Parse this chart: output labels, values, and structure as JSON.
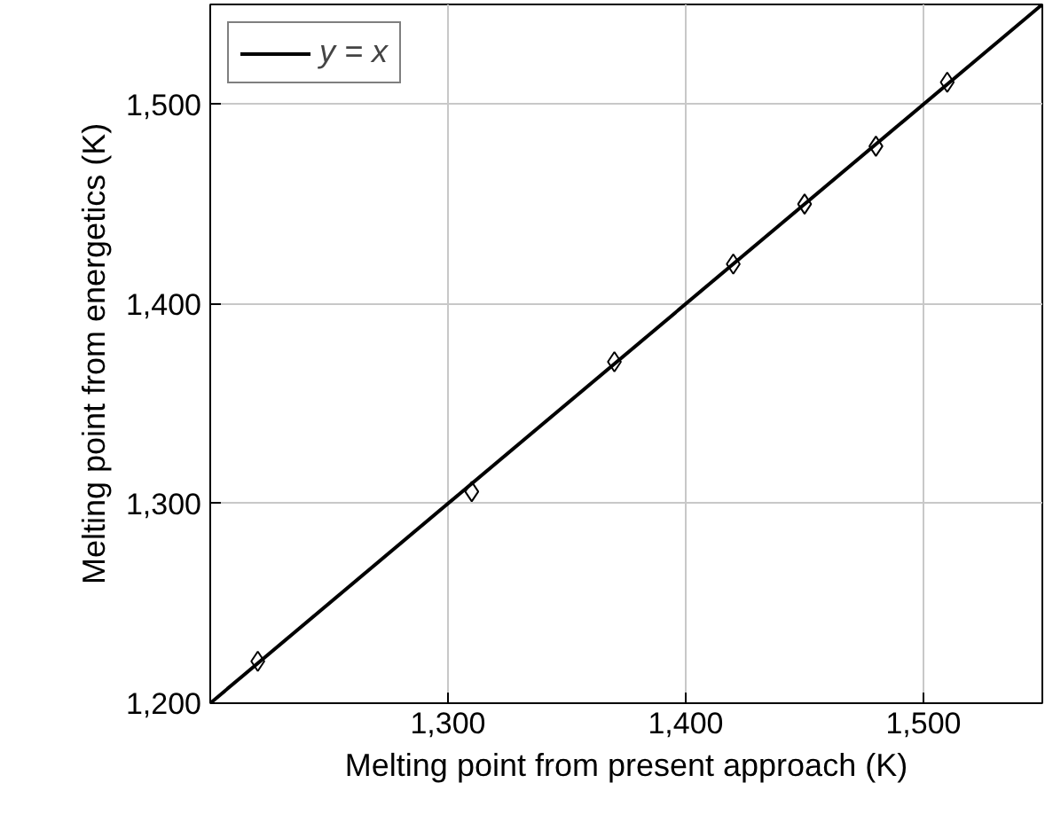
{
  "chart_data": {
    "type": "scatter",
    "xlabel": "Melting point from present approach (K)",
    "ylabel": "Melting point from energetics (K)",
    "x": [
      1220,
      1310,
      1370,
      1420,
      1450,
      1480,
      1510
    ],
    "series": [
      {
        "color": "#000000",
        "marker": "diamond",
        "values": [
          1221,
          1306,
          1371,
          1420,
          1450,
          1479,
          1511
        ]
      },
      {
        "type": "line",
        "name": "y = x",
        "color": "#000000",
        "x": [
          1200,
          1550
        ],
        "values": [
          1200,
          1550
        ],
        "marker": "none",
        "line_style": "solid"
      }
    ],
    "xlim": [
      1200,
      1550
    ],
    "ylim": [
      1200,
      1550
    ],
    "xticks": [
      {
        "value": 1300,
        "label": "1,300"
      },
      {
        "value": 1400,
        "label": "1,400"
      },
      {
        "value": 1500,
        "label": "1,500"
      }
    ],
    "yticks": [
      {
        "value": 1200,
        "label": "1,200"
      },
      {
        "value": 1300,
        "label": "1,300"
      },
      {
        "value": 1400,
        "label": "1,400"
      },
      {
        "value": 1500,
        "label": "1,500"
      }
    ],
    "grid": true,
    "legend": "top left"
  }
}
